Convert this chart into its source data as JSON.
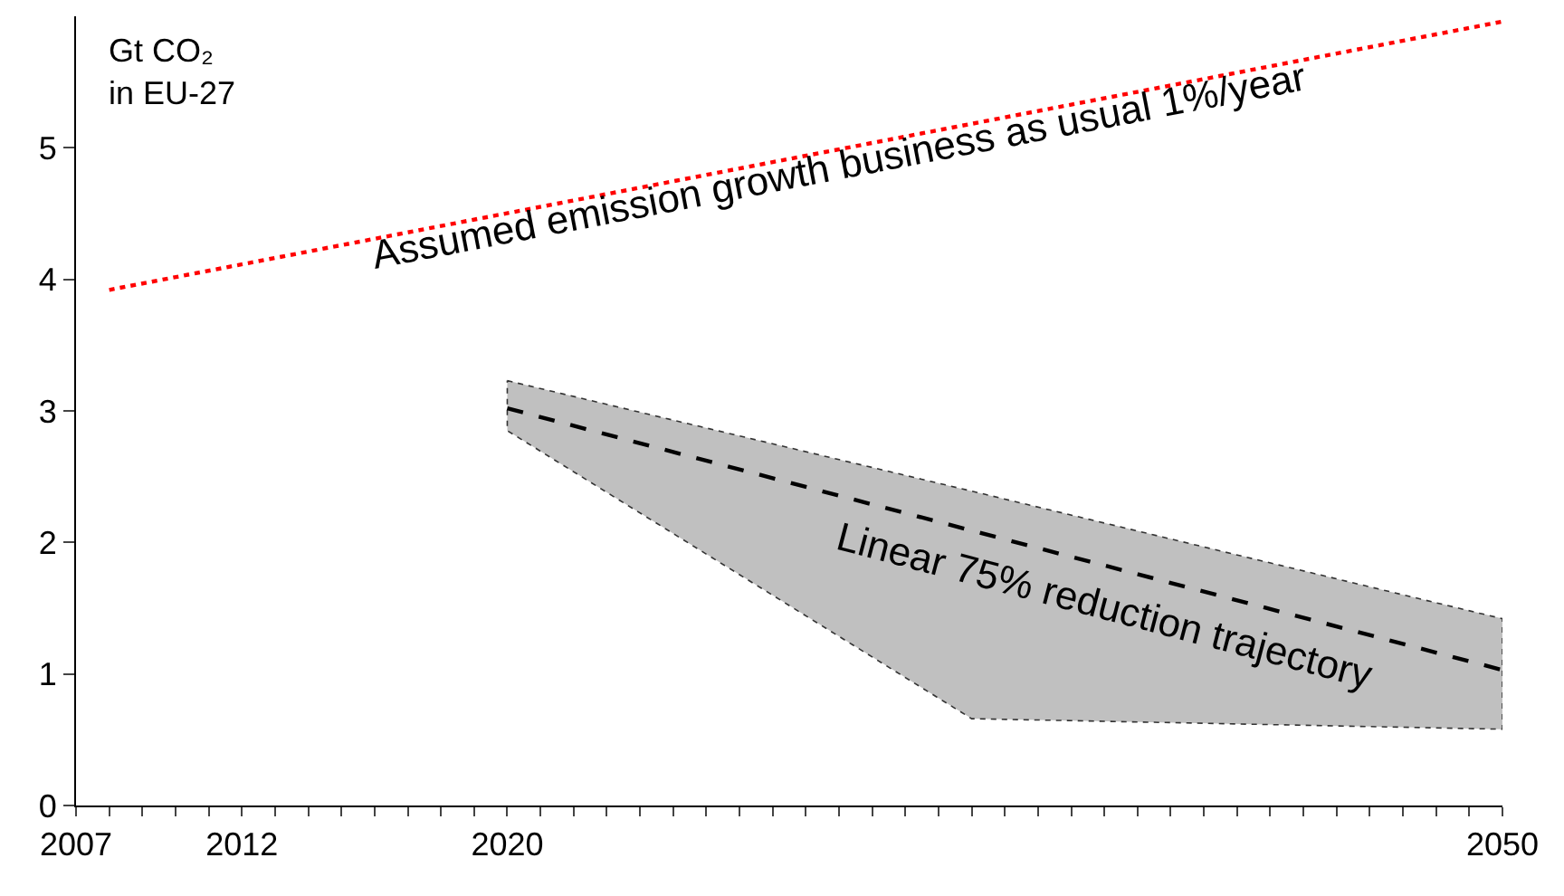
{
  "chart_data": {
    "type": "line",
    "ylabel": "Gt CO₂\nin EU-27",
    "series": [
      {
        "color": "#ff0000",
        "line_style": "dotted",
        "x": [
          2008,
          2050
        ],
        "values": [
          3.92,
          5.96
        ]
      },
      {
        "color": "#000000",
        "line_style": "dashed",
        "x": [
          2020,
          2034,
          2050
        ],
        "values": [
          3.02,
          2.09,
          1.03
        ],
        "lower": [
          2.85,
          0.66,
          0.58
        ],
        "upper": [
          3.23,
          2.39,
          1.42
        ]
      }
    ],
    "annotations": [
      {
        "text": "Assumed emission growth business as usual 1%/year",
        "x": 2030,
        "y": 4.99
      },
      "Linear 75% reduction trajectory"
    ],
    "xlim": [
      2007,
      2050
    ],
    "xticks": [
      2007,
      {
        "value": 2008,
        "label": null
      },
      {
        "value": 2009,
        "label": null
      },
      {
        "value": 2010,
        "label": null
      },
      {
        "value": 2011,
        "label": null
      },
      2012,
      {
        "value": 2013,
        "label": null
      },
      {
        "value": 2014,
        "label": null
      },
      {
        "value": 2015,
        "label": null
      },
      {
        "value": 2016,
        "label": null
      },
      {
        "value": 2017,
        "label": null
      },
      {
        "value": 2018,
        "label": null
      },
      {
        "value": 2019,
        "label": null
      },
      2020,
      {
        "value": 2021,
        "label": null
      },
      {
        "value": 2022,
        "label": null
      },
      {
        "value": 2023,
        "label": null
      },
      {
        "value": 2024,
        "label": null
      },
      {
        "value": 2025,
        "label": null
      },
      {
        "value": 2026,
        "label": null
      },
      {
        "value": 2027,
        "label": null
      },
      {
        "value": 2028,
        "label": null
      },
      {
        "value": 2029,
        "label": null
      },
      {
        "value": 2030,
        "label": null
      },
      {
        "value": 2031,
        "label": null
      },
      {
        "value": 2032,
        "label": null
      },
      {
        "value": 2033,
        "label": null
      },
      {
        "value": 2034,
        "label": null
      },
      {
        "value": 2035,
        "label": null
      },
      {
        "value": 2036,
        "label": null
      },
      {
        "value": 2037,
        "label": null
      },
      {
        "value": 2038,
        "label": null
      },
      {
        "value": 2039,
        "label": null
      },
      {
        "value": 2040,
        "label": null
      },
      {
        "value": 2041,
        "label": null
      },
      {
        "value": 2042,
        "label": null
      },
      {
        "value": 2043,
        "label": null
      },
      {
        "value": 2044,
        "label": null
      },
      {
        "value": 2045,
        "label": null
      },
      {
        "value": 2046,
        "label": null
      },
      {
        "value": 2047,
        "label": null
      },
      {
        "value": 2048,
        "label": null
      },
      {
        "value": 2049,
        "label": null
      },
      2050
    ],
    "ylim": [
      0,
      6
    ],
    "yticks": [
      0,
      1,
      2,
      3,
      4,
      5
    ],
    "marker": "none"
  }
}
